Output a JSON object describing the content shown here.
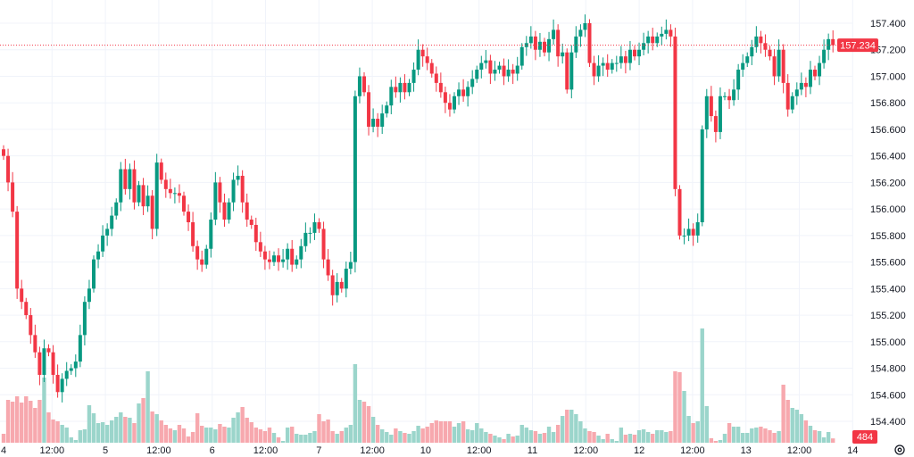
{
  "chart_data": {
    "type": "candlestick",
    "interval": "1 hour",
    "colors": {
      "up": "#089981",
      "down": "#F23645",
      "up_volume": "#9BD5CB",
      "down_volume": "#F7A8AE",
      "grid": "#F0F3FA",
      "last_price_line": "#F23645"
    },
    "price_ticks": [
      "157.400",
      "157.200",
      "157.000",
      "156.800",
      "156.600",
      "156.400",
      "156.200",
      "156.000",
      "155.800",
      "155.600",
      "155.400",
      "155.200",
      "155.000",
      "154.800",
      "154.600",
      "154.400"
    ],
    "price_range": [
      154.4,
      157.4
    ],
    "time_labels": [
      "4",
      "12:00",
      "5",
      "12:00",
      "6",
      "12:00",
      "7",
      "12:00",
      "10",
      "12:00",
      "11",
      "12:00",
      "12",
      "12:00",
      "13",
      "12:00",
      "14"
    ],
    "last_price": "157.234",
    "last_volume": "484",
    "first_open": 156.45,
    "closes": [
      156.4,
      156.2,
      155.98,
      155.4,
      155.3,
      155.2,
      155.05,
      154.92,
      154.75,
      154.95,
      154.92,
      154.75,
      154.62,
      154.72,
      154.78,
      154.8,
      154.85,
      155.05,
      155.3,
      155.4,
      155.62,
      155.68,
      155.8,
      155.85,
      155.95,
      156.05,
      156.3,
      156.15,
      156.3,
      156.05,
      156.18,
      156.02,
      156.1,
      155.85,
      156.35,
      156.22,
      156.15,
      156.12,
      156.12,
      156.1,
      155.98,
      155.9,
      155.72,
      155.62,
      155.58,
      155.7,
      155.92,
      156.2,
      156.05,
      155.92,
      156.05,
      156.22,
      156.25,
      156.05,
      155.92,
      155.88,
      155.75,
      155.68,
      155.62,
      155.6,
      155.65,
      155.6,
      155.62,
      155.7,
      155.58,
      155.62,
      155.72,
      155.82,
      155.82,
      155.9,
      155.85,
      155.62,
      155.5,
      155.35,
      155.45,
      155.4,
      155.55,
      155.6,
      156.85,
      157.0,
      156.88,
      156.62,
      156.68,
      156.62,
      156.72,
      156.78,
      156.92,
      156.88,
      156.95,
      156.88,
      156.95,
      157.05,
      157.2,
      157.15,
      157.1,
      157.02,
      156.95,
      156.88,
      156.8,
      156.75,
      156.85,
      156.9,
      156.85,
      156.92,
      156.98,
      157.05,
      157.1,
      157.12,
      157.02,
      157.05,
      157.08,
      157.0,
      157.05,
      157.02,
      157.08,
      157.22,
      157.25,
      157.3,
      157.2,
      157.26,
      157.18,
      157.28,
      157.35,
      157.15,
      157.18,
      156.9,
      157.18,
      157.3,
      157.35,
      157.4,
      157.1,
      157.0,
      157.08,
      157.1,
      157.05,
      157.1,
      157.1,
      157.15,
      157.1,
      157.2,
      157.15,
      157.2,
      157.25,
      157.3,
      157.25,
      157.3,
      157.32,
      157.35,
      157.3,
      156.15,
      155.8,
      155.8,
      155.85,
      155.8,
      155.9,
      156.6,
      156.85,
      156.7,
      156.58,
      156.85,
      156.85,
      156.82,
      156.9,
      157.05,
      157.1,
      157.15,
      157.22,
      157.3,
      157.25,
      157.2,
      157.15,
      157.0,
      157.2,
      156.95,
      156.75,
      156.85,
      156.9,
      156.95,
      156.92,
      157.05,
      157.0,
      157.1,
      157.2,
      157.28,
      157.234
    ],
    "volumes": [
      1000,
      4800,
      4600,
      5200,
      4500,
      5200,
      4700,
      3900,
      4800,
      7300,
      3400,
      2600,
      2400,
      2000,
      1700,
      600,
      300,
      1400,
      1500,
      4200,
      3300,
      2200,
      2300,
      2000,
      2500,
      2900,
      3400,
      2900,
      2800,
      2200,
      4400,
      5000,
      8000,
      3500,
      3200,
      2500,
      2000,
      1600,
      1400,
      2000,
      1600,
      700,
      1200,
      3300,
      1900,
      1700,
      1700,
      1500,
      2100,
      1800,
      1700,
      2800,
      3400,
      4000,
      2800,
      2300,
      1700,
      1500,
      1300,
      1700,
      1100,
      600,
      200,
      1700,
      1800,
      1000,
      900,
      900,
      1100,
      1300,
      3200,
      2400,
      2600,
      1300,
      1000,
      1300,
      1700,
      2000,
      8800,
      4800,
      4600,
      4100,
      2900,
      2000,
      1500,
      1200,
      900,
      1600,
      1300,
      1100,
      1000,
      1300,
      1900,
      1600,
      1800,
      2200,
      2500,
      2400,
      2400,
      2400,
      1800,
      2200,
      2400,
      1500,
      1400,
      2200,
      1600,
      1200,
      1000,
      800,
      600,
      400,
      1000,
      700,
      800,
      2000,
      1700,
      1400,
      1300,
      1000,
      1100,
      1800,
      1200,
      2000,
      3000,
      3700,
      3700,
      3200,
      2400,
      1600,
      1300,
      1200,
      800,
      400,
      1000,
      400,
      200,
      1700,
      900,
      1000,
      900,
      1400,
      1500,
      1200,
      1000,
      1400,
      1400,
      1200,
      1300,
      8000,
      7900,
      5800,
      3000,
      2200,
      2400,
      12800,
      4100,
      500,
      200,
      300,
      1000,
      2200,
      1800,
      1800,
      1100,
      1100,
      1600,
      1700,
      1800,
      1600,
      1400,
      1100,
      1300,
      6500,
      4800,
      3900,
      3700,
      3200,
      2500,
      1900,
      1400,
      1300,
      600,
      1200,
      484
    ]
  },
  "icons": {
    "settings": "gear-icon"
  }
}
